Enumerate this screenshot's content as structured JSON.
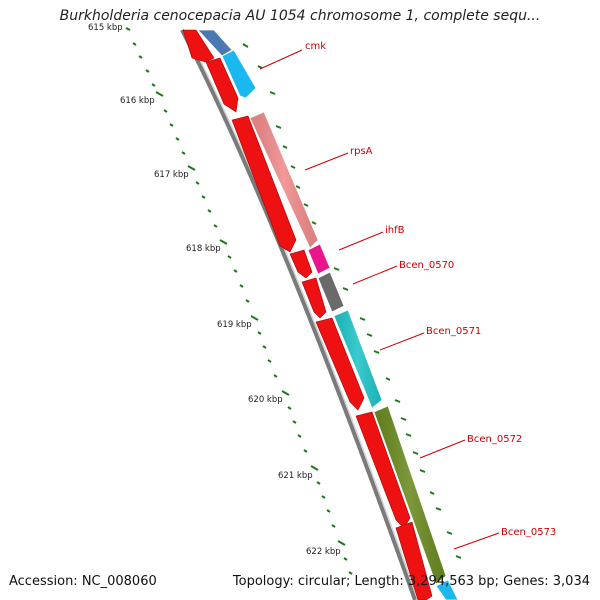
{
  "title": "Burkholderia cenocepacia AU 1054 chromosome 1, complete sequ...",
  "footer": {
    "accession": "Accession: NC_008060",
    "summary": "Topology: circular; Length: 3,294,563 bp; Genes: 3,034"
  },
  "scale": {
    "ticks": [
      "615 kbp",
      "616 kbp",
      "617 kbp",
      "618 kbp",
      "619 kbp",
      "620 kbp",
      "621 kbp",
      "622 kbp"
    ]
  },
  "genes": [
    {
      "label": "",
      "color": "#4a78b0"
    },
    {
      "label": "cmk",
      "color": "#1ab8ef"
    },
    {
      "label": "rpsA",
      "color": "#f08a8a"
    },
    {
      "label": "ihfB",
      "color": "#e8158c"
    },
    {
      "label": "Bcen_0570",
      "color": "#6a6a6a"
    },
    {
      "label": "Bcen_0571",
      "color": "#1fc4c8"
    },
    {
      "label": "Bcen_0572",
      "color": "#6a8a20"
    },
    {
      "label": "Bcen_0573",
      "color": "#1ab8ef"
    }
  ],
  "colors": {
    "cds_arrow": "#ee1111",
    "backbone": "#7a7a7a",
    "tick": "#1a7a1a",
    "label": "#cc0000"
  }
}
